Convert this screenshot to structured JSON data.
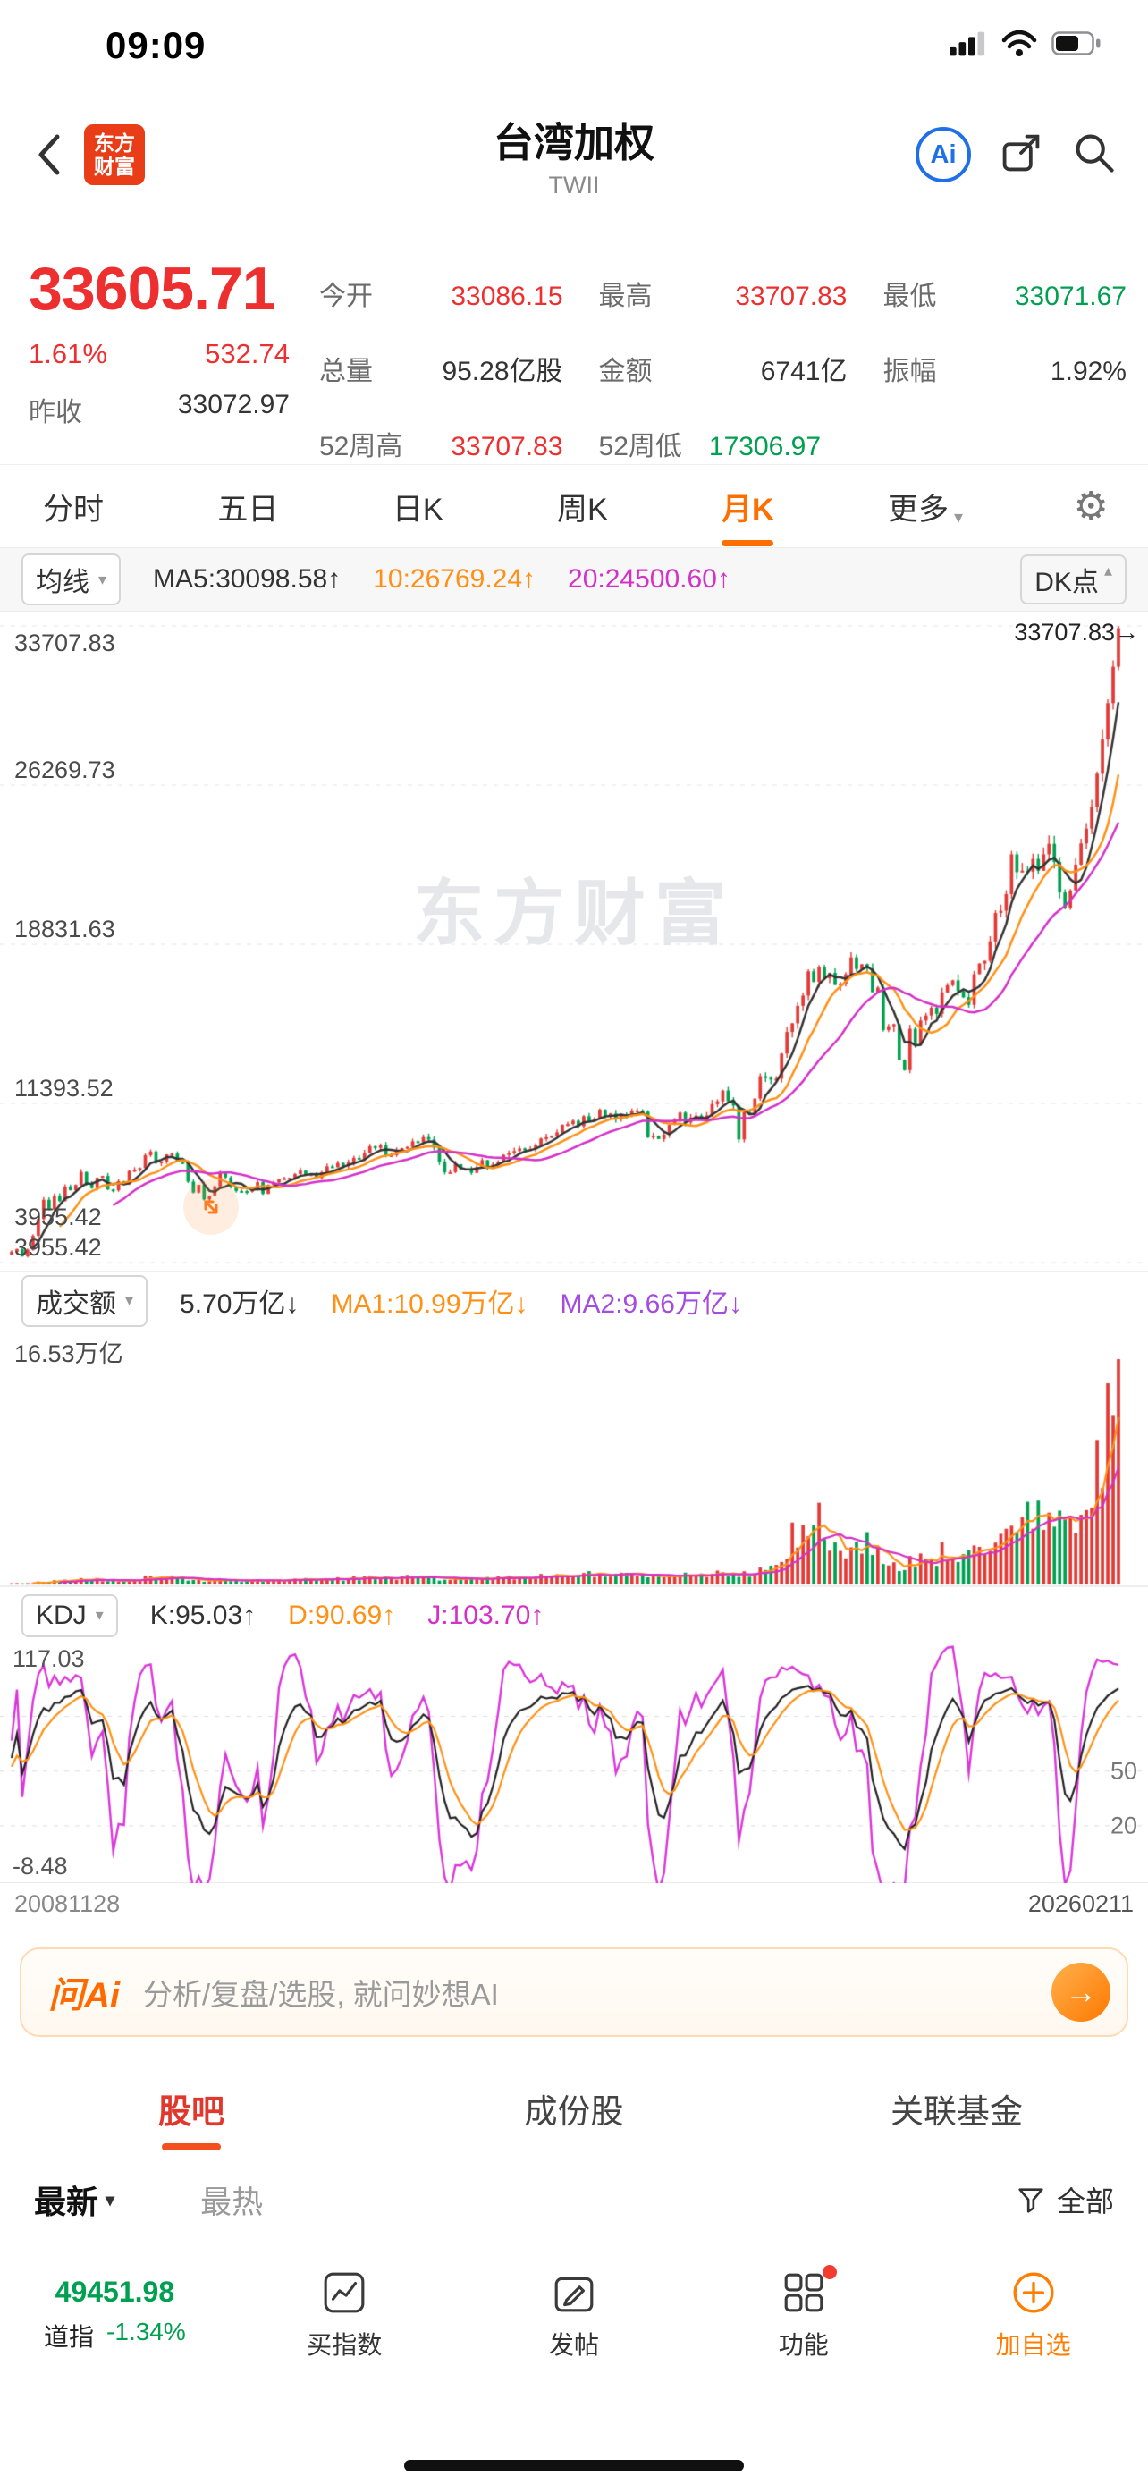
{
  "palette": {
    "red": "#ed2f2f",
    "green": "#00a050",
    "up": "#e23a36",
    "down": "#00a050",
    "orange": "#ff6f00",
    "maorange": "#ff9015",
    "magenta": "#d431c8",
    "purple": "#a44be0",
    "kdj_k": "#222222",
    "kdj_d": "#ff9015",
    "kdj_j": "#da36da",
    "blue": "#1f6fe8"
  },
  "status_bar": {
    "time": "09:09"
  },
  "header": {
    "logo_line1": "东方",
    "logo_line2": "财富",
    "title": "台湾加权",
    "subtitle": "TWII",
    "ai_label": "Ai"
  },
  "quote": {
    "price": "33605.71",
    "change_pct": "1.61%",
    "change_val": "532.74",
    "prev_close_label": "昨收",
    "prev_close": "33072.97",
    "fields": [
      {
        "label": "今开",
        "value": "33086.15"
      },
      {
        "label": "最高",
        "value": "33707.83"
      },
      {
        "label": "最低",
        "value": "33071.67"
      },
      {
        "label": "总量",
        "value": "95.28亿股"
      },
      {
        "label": "金额",
        "value": "6741亿"
      },
      {
        "label": "振幅",
        "value": "1.92%"
      },
      {
        "label": "52周高",
        "value": "33707.83"
      },
      {
        "label": "52周低",
        "value": "17306.97"
      }
    ]
  },
  "period_tabs": {
    "items": [
      "分时",
      "五日",
      "日K",
      "周K",
      "月K"
    ],
    "active": "月K",
    "more": "更多"
  },
  "ma_row": {
    "selector": "均线",
    "ma5": "MA5:30098.58↑",
    "ma10": "10:26769.24↑",
    "ma20": "20:24500.60↑",
    "dk": "DK点"
  },
  "main_chart": {
    "y_labels": [
      "33707.83",
      "26269.73",
      "18831.63",
      "11393.52",
      "3955.42"
    ],
    "high_tag": "33707.83→",
    "min_tag": "3955.42",
    "watermark": "东方财富"
  },
  "volume": {
    "selector": "成交额",
    "current": "5.70万亿↓",
    "ma1": "MA1:10.99万亿↓",
    "ma2": "MA2:9.66万亿↓",
    "y_max_label": "16.53万亿"
  },
  "kdj": {
    "selector": "KDJ",
    "k": "K:95.03↑",
    "d": "D:90.69↑",
    "j": "J:103.70↑",
    "y_top": "117.03",
    "y_bottom": "-8.48",
    "grid_50": "50",
    "grid_20": "20"
  },
  "dates": {
    "start": "20081128",
    "end": "20260211"
  },
  "ai_banner": {
    "brand": "问Ai",
    "text": "分析/复盘/选股, 就问妙想AI"
  },
  "section_tabs": {
    "items": [
      "股吧",
      "成份股",
      "关联基金"
    ],
    "active": "股吧"
  },
  "sort_row": {
    "newest": "最新",
    "hottest": "最热",
    "filter_label": "全部"
  },
  "bottom_nav": {
    "index_value": "49451.98",
    "index_name": "道指",
    "index_change": "-1.34%",
    "buy_index": "买指数",
    "post": "发帖",
    "features": "功能",
    "add_watchlist": "加自选"
  },
  "chart_data": {
    "type": "candlestick",
    "period": "monthly",
    "start_date": "20081128",
    "end_date": "20260211",
    "y_axis": [
      3955.42,
      11393.52,
      18831.63,
      26269.73,
      33707.83
    ],
    "last_close": 33605.71,
    "high": 33707.83,
    "closes": [
      4460,
      4591,
      4248,
      4557,
      5210,
      5992,
      6890,
      6432,
      7077,
      6826,
      7509,
      7340,
      7582,
      8188,
      7640,
      7436,
      7920,
      8004,
      7374,
      7329,
      7760,
      7616,
      8237,
      8287,
      8372,
      8973,
      9145,
      8599,
      8683,
      9008,
      9045,
      8653,
      8644,
      7741,
      7225,
      7588,
      6904,
      7072,
      7517,
      8121,
      7933,
      7501,
      7301,
      7296,
      7270,
      7397,
      7715,
      7166,
      7580,
      7700,
      7850,
      7898,
      7919,
      8094,
      8254,
      8062,
      8108,
      7910,
      8173,
      8450,
      8407,
      8612,
      8462,
      8639,
      8849,
      8791,
      9075,
      9393,
      9315,
      9436,
      8967,
      8974,
      9187,
      9307,
      9362,
      9622,
      9586,
      9820,
      9701,
      9323,
      8665,
      8175,
      8181,
      8554,
      8320,
      8338,
      8145,
      8411,
      8744,
      8377,
      8535,
      8666,
      8984,
      9068,
      9166,
      9290,
      9240,
      9253,
      9447,
      9750,
      9811,
      9872,
      10040,
      10395,
      10427,
      10585,
      10329,
      10793,
      10560,
      10642,
      11103,
      10815,
      10919,
      10657,
      10874,
      10836,
      11057,
      11064,
      11006,
      9802,
      9888,
      9727,
      9932,
      10389,
      10641,
      10967,
      10498,
      10730,
      10823,
      10618,
      10829,
      11358,
      11489,
      11997,
      11495,
      11292,
      9708,
      10992,
      10942,
      11621,
      12664,
      12591,
      12515,
      12546,
      13722,
      14732,
      15138,
      15953,
      16431,
      17566,
      17068,
      17755,
      17247,
      17490,
      16934,
      16987,
      17427,
      18218,
      17674,
      17898,
      17701,
      16592,
      16807,
      14825,
      15000,
      15095,
      13424,
      12949,
      14879,
      14137,
      15265,
      15503,
      15868,
      15579,
      16579,
      16915,
      17145,
      16634,
      16353,
      16001,
      17433,
      17930,
      18059,
      18966,
      20294,
      20396,
      21174,
      23032,
      22199,
      22268,
      22224,
      22820,
      22262,
      23035,
      23525,
      22680,
      21252,
      20532,
      21347,
      22553,
      23542,
      24233,
      25250,
      26800,
      28400,
      30100,
      31800,
      33605.71
    ]
  }
}
